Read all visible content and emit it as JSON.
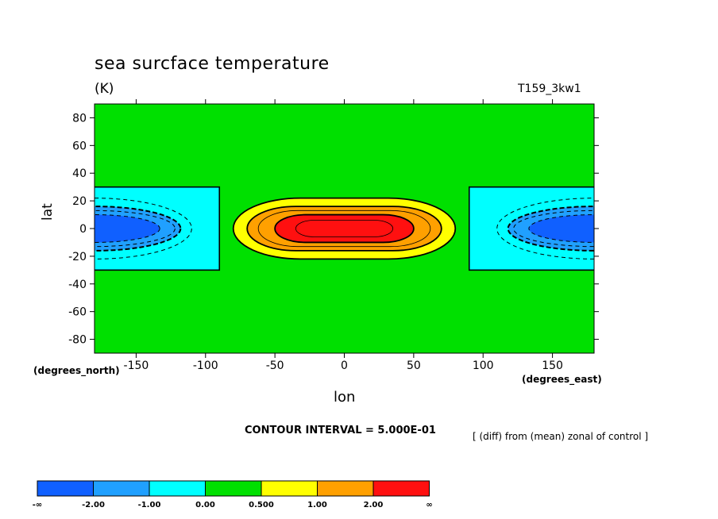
{
  "chart_data": {
    "type": "heatmap",
    "title": "sea surcface temperature",
    "units_label": "(K)",
    "run_label": "T159_3kw1",
    "xlabel": "lon",
    "ylabel": "lat",
    "x_units": "(degrees_east)",
    "y_units": "(degrees_north)",
    "xlim": [
      -180,
      180
    ],
    "ylim": [
      -90,
      90
    ],
    "x_ticks": [
      -150,
      -100,
      -50,
      0,
      50,
      100,
      150
    ],
    "y_ticks": [
      -80,
      -60,
      -40,
      -20,
      0,
      20,
      40,
      60,
      80
    ],
    "contour_interval_text": "CONTOUR INTERVAL = 5.000E-01",
    "diff_text": "[ (diff) from (mean) zonal of control ]",
    "warm_anomaly": {
      "lon_center": 0,
      "lat_center": 0,
      "contours": [
        {
          "level": 0.5,
          "lon_halfwidth": 80,
          "lat_halfwidth": 22,
          "fill": "yellow"
        },
        {
          "level": 1.0,
          "lon_halfwidth": 70,
          "lat_halfwidth": 16,
          "fill": "orange"
        },
        {
          "level": 1.5,
          "lon_halfwidth": 62,
          "lat_halfwidth": 13,
          "fill": "orange"
        },
        {
          "level": 2.0,
          "lon_halfwidth": 50,
          "lat_halfwidth": 10,
          "fill": "red"
        },
        {
          "level": 2.5,
          "lon_halfwidth": 35,
          "lat_halfwidth": 6,
          "fill": "red"
        }
      ]
    },
    "cold_anomaly": {
      "box_lon_min": 90,
      "box_lon_max": -90,
      "box_lat": [
        -30,
        30
      ],
      "lon_center": 180,
      "lat_center": 0,
      "contours": [
        {
          "level": -0.5,
          "lon_halfwidth": 70,
          "lat_halfwidth": 22,
          "fill": "cyan"
        },
        {
          "level": -1.0,
          "lon_halfwidth": 62,
          "lat_halfwidth": 16,
          "fill": "lightblue"
        },
        {
          "level": -1.5,
          "lon_halfwidth": 58,
          "lat_halfwidth": 13,
          "fill": "lightblue"
        },
        {
          "level": -2.0,
          "lon_halfwidth": 47,
          "lat_halfwidth": 10,
          "fill": "blue"
        }
      ]
    },
    "colorbar": {
      "labels": [
        "-∞",
        "-2.00",
        "-1.00",
        "0.00",
        "0.500",
        "1.00",
        "2.00",
        "∞"
      ],
      "colors": [
        "#1060ff",
        "#20a0ff",
        "#00ffff",
        "#00e000",
        "#ffff00",
        "#ffa000",
        "#ff1010"
      ]
    },
    "colors": {
      "background": "#00e000",
      "cyan": "#00ffff",
      "lightblue": "#20a0ff",
      "blue": "#1060ff",
      "yellow": "#ffff00",
      "orange": "#ffa000",
      "red": "#ff1010"
    }
  }
}
